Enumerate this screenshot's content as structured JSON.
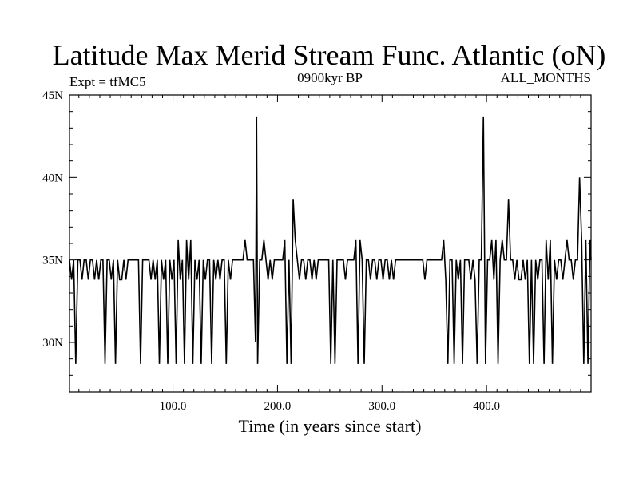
{
  "chart_data": {
    "type": "line",
    "title": "Latitude Max Merid Stream Func. Atlantic (oN)",
    "subtitle_left": "Expt = tfMC5",
    "subtitle_center": "0900kyr BP",
    "subtitle_right": "ALL_MONTHS",
    "xlabel": "Time (in years since start)",
    "ylabel": "",
    "xlim": [
      1,
      500
    ],
    "ylim": [
      27,
      45
    ],
    "x_ticks": [
      100,
      200,
      300,
      400
    ],
    "x_tick_labels": [
      "100.0",
      "200.0",
      "300.0",
      "400.0"
    ],
    "y_ticks": [
      30,
      35,
      40,
      45
    ],
    "y_tick_labels": [
      "30N",
      "35N",
      "40N",
      "45N"
    ],
    "grid": false,
    "series": [
      {
        "points": [
          [
            1,
            35
          ],
          [
            3,
            33.8
          ],
          [
            5,
            35
          ],
          [
            7,
            28.7
          ],
          [
            9,
            35
          ],
          [
            11,
            35
          ],
          [
            13,
            33.8
          ],
          [
            15,
            35
          ],
          [
            17,
            35
          ],
          [
            19,
            33.8
          ],
          [
            21,
            35
          ],
          [
            23,
            35
          ],
          [
            25,
            33.8
          ],
          [
            27,
            35
          ],
          [
            29,
            33.8
          ],
          [
            31,
            35
          ],
          [
            33,
            35
          ],
          [
            35,
            28.7
          ],
          [
            37,
            35
          ],
          [
            39,
            35
          ],
          [
            41,
            33.8
          ],
          [
            43,
            35
          ],
          [
            45,
            28.7
          ],
          [
            47,
            35
          ],
          [
            49,
            33.8
          ],
          [
            51,
            33.8
          ],
          [
            53,
            35
          ],
          [
            55,
            33.8
          ],
          [
            57,
            35
          ],
          [
            59,
            35
          ],
          [
            61,
            35
          ],
          [
            63,
            35
          ],
          [
            65,
            35
          ],
          [
            67,
            35
          ],
          [
            69,
            28.7
          ],
          [
            71,
            35
          ],
          [
            73,
            35
          ],
          [
            75,
            35
          ],
          [
            77,
            35
          ],
          [
            79,
            33.8
          ],
          [
            81,
            35
          ],
          [
            83,
            33.8
          ],
          [
            85,
            35
          ],
          [
            87,
            28.7
          ],
          [
            89,
            35
          ],
          [
            91,
            33.8
          ],
          [
            93,
            35
          ],
          [
            95,
            28.7
          ],
          [
            97,
            35
          ],
          [
            99,
            33.8
          ],
          [
            101,
            35
          ],
          [
            103,
            28.7
          ],
          [
            105,
            36.2
          ],
          [
            107,
            33.8
          ],
          [
            109,
            35
          ],
          [
            111,
            28.7
          ],
          [
            113,
            36.2
          ],
          [
            115,
            33.8
          ],
          [
            117,
            36.2
          ],
          [
            119,
            28.7
          ],
          [
            121,
            35
          ],
          [
            123,
            33.8
          ],
          [
            125,
            35
          ],
          [
            127,
            28.7
          ],
          [
            129,
            35
          ],
          [
            131,
            33.8
          ],
          [
            133,
            35
          ],
          [
            135,
            35
          ],
          [
            137,
            28.7
          ],
          [
            139,
            35
          ],
          [
            141,
            33.8
          ],
          [
            143,
            35
          ],
          [
            145,
            33.8
          ],
          [
            147,
            35
          ],
          [
            149,
            35
          ],
          [
            151,
            28.7
          ],
          [
            153,
            35
          ],
          [
            155,
            33.8
          ],
          [
            157,
            35
          ],
          [
            159,
            35
          ],
          [
            161,
            35
          ],
          [
            163,
            35
          ],
          [
            165,
            35
          ],
          [
            167,
            35
          ],
          [
            169,
            36.2
          ],
          [
            171,
            35
          ],
          [
            173,
            35
          ],
          [
            175,
            35
          ],
          [
            177,
            35
          ],
          [
            179,
            30
          ],
          [
            180,
            43.7
          ],
          [
            181,
            28.7
          ],
          [
            183,
            35
          ],
          [
            185,
            35
          ],
          [
            187,
            36.2
          ],
          [
            189,
            35
          ],
          [
            191,
            33.8
          ],
          [
            193,
            35
          ],
          [
            195,
            33.8
          ],
          [
            197,
            35
          ],
          [
            199,
            35
          ],
          [
            201,
            35
          ],
          [
            203,
            35
          ],
          [
            205,
            35
          ],
          [
            207,
            36.2
          ],
          [
            209,
            28.7
          ],
          [
            211,
            35
          ],
          [
            213,
            28.7
          ],
          [
            215,
            38.7
          ],
          [
            217,
            36.2
          ],
          [
            219,
            35
          ],
          [
            221,
            33.8
          ],
          [
            223,
            35
          ],
          [
            225,
            35
          ],
          [
            227,
            33.8
          ],
          [
            229,
            35
          ],
          [
            231,
            35
          ],
          [
            233,
            33.8
          ],
          [
            235,
            35
          ],
          [
            237,
            33.8
          ],
          [
            239,
            35
          ],
          [
            241,
            35
          ],
          [
            243,
            35
          ],
          [
            245,
            35
          ],
          [
            247,
            35
          ],
          [
            249,
            35
          ],
          [
            251,
            28.7
          ],
          [
            253,
            35
          ],
          [
            255,
            28.7
          ],
          [
            257,
            35
          ],
          [
            259,
            35
          ],
          [
            261,
            35
          ],
          [
            263,
            35
          ],
          [
            265,
            33.8
          ],
          [
            267,
            35
          ],
          [
            269,
            35
          ],
          [
            271,
            35
          ],
          [
            273,
            35
          ],
          [
            275,
            36.2
          ],
          [
            277,
            28.7
          ],
          [
            279,
            36.2
          ],
          [
            281,
            35
          ],
          [
            283,
            28.7
          ],
          [
            285,
            35
          ],
          [
            287,
            35
          ],
          [
            289,
            33.8
          ],
          [
            291,
            35
          ],
          [
            293,
            35
          ],
          [
            295,
            33.8
          ],
          [
            297,
            35
          ],
          [
            299,
            35
          ],
          [
            301,
            33.8
          ],
          [
            303,
            35
          ],
          [
            305,
            35
          ],
          [
            307,
            33.8
          ],
          [
            309,
            35
          ],
          [
            311,
            33.8
          ],
          [
            313,
            35
          ],
          [
            315,
            35
          ],
          [
            317,
            35
          ],
          [
            319,
            35
          ],
          [
            321,
            35
          ],
          [
            323,
            35
          ],
          [
            325,
            35
          ],
          [
            327,
            35
          ],
          [
            329,
            35
          ],
          [
            331,
            35
          ],
          [
            333,
            35
          ],
          [
            335,
            35
          ],
          [
            337,
            35
          ],
          [
            339,
            35
          ],
          [
            341,
            33.8
          ],
          [
            343,
            35
          ],
          [
            345,
            35
          ],
          [
            347,
            35
          ],
          [
            349,
            35
          ],
          [
            351,
            35
          ],
          [
            353,
            35
          ],
          [
            355,
            35
          ],
          [
            357,
            35
          ],
          [
            359,
            36.2
          ],
          [
            361,
            33.8
          ],
          [
            363,
            28.7
          ],
          [
            365,
            35
          ],
          [
            367,
            35
          ],
          [
            369,
            28.7
          ],
          [
            371,
            35
          ],
          [
            373,
            33.8
          ],
          [
            375,
            35
          ],
          [
            377,
            28.7
          ],
          [
            379,
            35
          ],
          [
            381,
            35
          ],
          [
            383,
            35
          ],
          [
            385,
            33.8
          ],
          [
            387,
            35
          ],
          [
            389,
            33.8
          ],
          [
            391,
            28.7
          ],
          [
            393,
            35
          ],
          [
            395,
            35
          ],
          [
            397,
            43.7
          ],
          [
            399,
            28.7
          ],
          [
            401,
            35
          ],
          [
            403,
            35
          ],
          [
            405,
            36.2
          ],
          [
            407,
            33.8
          ],
          [
            409,
            36.2
          ],
          [
            411,
            28.7
          ],
          [
            413,
            35
          ],
          [
            415,
            36.2
          ],
          [
            417,
            35
          ],
          [
            419,
            35
          ],
          [
            421,
            38.7
          ],
          [
            423,
            35
          ],
          [
            425,
            35
          ],
          [
            427,
            33.8
          ],
          [
            429,
            35
          ],
          [
            431,
            33.8
          ],
          [
            433,
            33.8
          ],
          [
            435,
            35
          ],
          [
            437,
            33.8
          ],
          [
            439,
            35
          ],
          [
            441,
            28.7
          ],
          [
            443,
            35
          ],
          [
            445,
            28.7
          ],
          [
            447,
            35
          ],
          [
            449,
            33.8
          ],
          [
            451,
            35
          ],
          [
            453,
            35
          ],
          [
            455,
            28.7
          ],
          [
            457,
            36.2
          ],
          [
            459,
            33.8
          ],
          [
            461,
            36.2
          ],
          [
            463,
            28.7
          ],
          [
            465,
            35
          ],
          [
            467,
            33.8
          ],
          [
            469,
            35
          ],
          [
            471,
            35
          ],
          [
            473,
            33.8
          ],
          [
            475,
            35
          ],
          [
            477,
            36.2
          ],
          [
            479,
            35
          ],
          [
            481,
            35
          ],
          [
            483,
            33.8
          ],
          [
            485,
            35
          ],
          [
            487,
            35
          ],
          [
            489,
            40
          ],
          [
            491,
            36.2
          ],
          [
            493,
            28.7
          ],
          [
            495,
            36.2
          ],
          [
            497,
            28.7
          ],
          [
            499,
            36.2
          ],
          [
            500,
            35
          ]
        ]
      }
    ]
  }
}
